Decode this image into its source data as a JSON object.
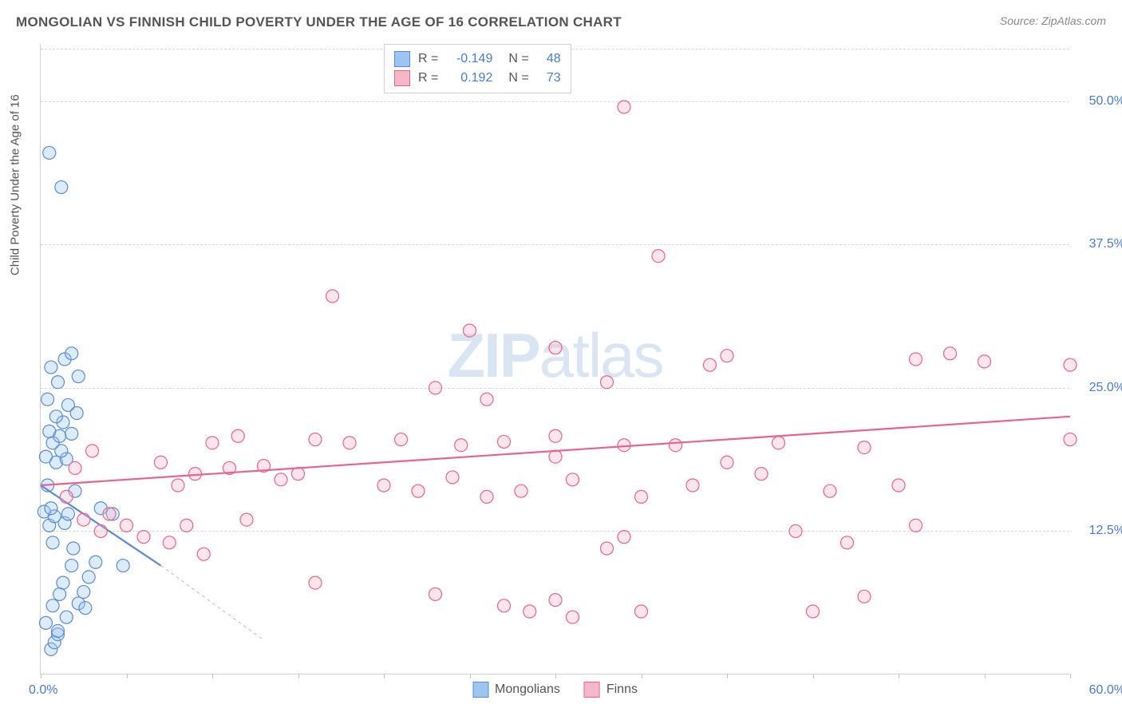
{
  "title": "MONGOLIAN VS FINNISH CHILD POVERTY UNDER THE AGE OF 16 CORRELATION CHART",
  "source": "Source: ZipAtlas.com",
  "ylabel": "Child Poverty Under the Age of 16",
  "watermark_bold": "ZIP",
  "watermark_rest": "atlas",
  "chart": {
    "type": "scatter",
    "xlim": [
      0,
      60
    ],
    "ylim": [
      0,
      55
    ],
    "xticks_pct": [
      0,
      5,
      10,
      15,
      20,
      25,
      30,
      35,
      40,
      45,
      50,
      55,
      60
    ],
    "yticks": [
      {
        "val": 12.5,
        "label": "12.5%"
      },
      {
        "val": 25.0,
        "label": "25.0%"
      },
      {
        "val": 37.5,
        "label": "37.5%"
      },
      {
        "val": 50.0,
        "label": "50.0%"
      }
    ],
    "xlabel_min": "0.0%",
    "xlabel_max": "60.0%",
    "background_color": "#ffffff",
    "grid_color": "#d8d8d8",
    "marker_radius": 8,
    "series": [
      {
        "name": "Mongolians",
        "fill": "#9cc5f0",
        "stroke": "#5a8bd0",
        "r_value": "-0.149",
        "n_value": "48",
        "trend": {
          "x1": 0,
          "y1": 16.5,
          "x2": 7,
          "y2": 9.5,
          "ext_x2": 13,
          "ext_y2": 3
        },
        "points": [
          [
            0.5,
            45.5
          ],
          [
            1.2,
            42.5
          ],
          [
            0.6,
            2.2
          ],
          [
            0.8,
            2.8
          ],
          [
            1.0,
            3.5
          ],
          [
            1.5,
            5.0
          ],
          [
            0.7,
            6.0
          ],
          [
            2.2,
            6.2
          ],
          [
            1.1,
            7.0
          ],
          [
            2.5,
            7.2
          ],
          [
            2.8,
            8.5
          ],
          [
            1.3,
            8.0
          ],
          [
            1.8,
            9.5
          ],
          [
            4.8,
            9.5
          ],
          [
            3.2,
            9.8
          ],
          [
            0.5,
            13.0
          ],
          [
            1.4,
            13.2
          ],
          [
            0.8,
            13.8
          ],
          [
            0.2,
            14.2
          ],
          [
            0.6,
            14.5
          ],
          [
            1.6,
            14.0
          ],
          [
            4.2,
            14.0
          ],
          [
            2.0,
            16.0
          ],
          [
            0.4,
            16.5
          ],
          [
            0.9,
            18.5
          ],
          [
            1.5,
            18.8
          ],
          [
            0.3,
            19.0
          ],
          [
            1.2,
            19.5
          ],
          [
            0.7,
            20.2
          ],
          [
            1.1,
            20.8
          ],
          [
            1.8,
            21.0
          ],
          [
            0.5,
            21.2
          ],
          [
            1.3,
            22.0
          ],
          [
            0.9,
            22.5
          ],
          [
            2.1,
            22.8
          ],
          [
            1.6,
            23.5
          ],
          [
            0.4,
            24.0
          ],
          [
            1.0,
            25.5
          ],
          [
            2.2,
            26.0
          ],
          [
            1.4,
            27.5
          ],
          [
            0.6,
            26.8
          ],
          [
            1.8,
            28.0
          ],
          [
            0.7,
            11.5
          ],
          [
            1.9,
            11.0
          ],
          [
            0.3,
            4.5
          ],
          [
            2.6,
            5.8
          ],
          [
            3.5,
            14.5
          ],
          [
            1.0,
            3.8
          ]
        ]
      },
      {
        "name": "Finns",
        "fill": "#f5b8c8",
        "stroke": "#e8638a",
        "r_value": "0.192",
        "n_value": "73",
        "trend": {
          "x1": 0,
          "y1": 16.5,
          "x2": 60,
          "y2": 22.5
        },
        "points": [
          [
            34,
            49.5
          ],
          [
            36,
            36.5
          ],
          [
            17,
            33.0
          ],
          [
            25,
            30.0
          ],
          [
            30,
            28.5
          ],
          [
            53,
            28.0
          ],
          [
            40,
            27.8
          ],
          [
            51,
            27.5
          ],
          [
            55,
            27.3
          ],
          [
            60,
            27.0
          ],
          [
            10,
            20.2
          ],
          [
            11.5,
            20.8
          ],
          [
            16,
            20.5
          ],
          [
            18,
            20.2
          ],
          [
            21,
            20.5
          ],
          [
            23,
            25.0
          ],
          [
            24.5,
            20.0
          ],
          [
            26,
            24.0
          ],
          [
            27,
            20.3
          ],
          [
            30,
            19.0
          ],
          [
            30,
            20.8
          ],
          [
            33,
            25.5
          ],
          [
            34,
            20.0
          ],
          [
            37,
            20.0
          ],
          [
            39,
            27.0
          ],
          [
            40,
            18.5
          ],
          [
            43,
            20.2
          ],
          [
            48,
            19.8
          ],
          [
            60,
            20.5
          ],
          [
            7,
            18.5
          ],
          [
            8,
            16.5
          ],
          [
            9,
            17.5
          ],
          [
            11,
            18.0
          ],
          [
            13,
            18.2
          ],
          [
            14,
            17.0
          ],
          [
            15,
            17.5
          ],
          [
            20,
            16.5
          ],
          [
            22,
            16.0
          ],
          [
            24,
            17.2
          ],
          [
            26,
            15.5
          ],
          [
            28,
            16.0
          ],
          [
            31,
            17.0
          ],
          [
            35,
            15.5
          ],
          [
            38,
            16.5
          ],
          [
            42,
            17.5
          ],
          [
            46,
            16.0
          ],
          [
            50,
            16.5
          ],
          [
            2.5,
            13.5
          ],
          [
            3.5,
            12.5
          ],
          [
            4,
            14.0
          ],
          [
            5,
            13.0
          ],
          [
            6,
            12.0
          ],
          [
            7.5,
            11.5
          ],
          [
            8.5,
            13.0
          ],
          [
            9.5,
            10.5
          ],
          [
            12,
            13.5
          ],
          [
            33,
            11.0
          ],
          [
            34,
            12.0
          ],
          [
            44,
            12.5
          ],
          [
            47,
            11.5
          ],
          [
            51,
            13.0
          ],
          [
            16,
            8.0
          ],
          [
            23,
            7.0
          ],
          [
            27,
            6.0
          ],
          [
            28.5,
            5.5
          ],
          [
            30,
            6.5
          ],
          [
            31,
            5.0
          ],
          [
            35,
            5.5
          ],
          [
            45,
            5.5
          ],
          [
            48,
            6.8
          ],
          [
            2,
            18.0
          ],
          [
            3,
            19.5
          ],
          [
            1.5,
            15.5
          ]
        ]
      }
    ]
  },
  "legend_bottom": [
    {
      "label": "Mongolians",
      "fill": "#9cc5f0",
      "stroke": "#5a8bd0"
    },
    {
      "label": "Finns",
      "fill": "#f5b8c8",
      "stroke": "#e8638a"
    }
  ]
}
